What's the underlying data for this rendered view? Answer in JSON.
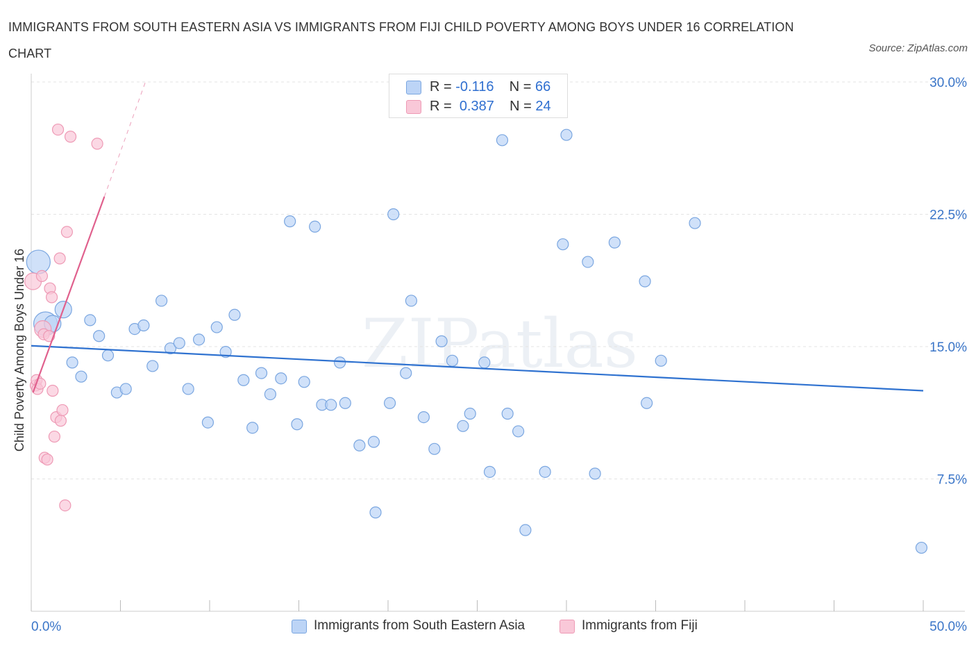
{
  "header": {
    "title": "IMMIGRANTS FROM SOUTH EASTERN ASIA VS IMMIGRANTS FROM FIJI CHILD POVERTY AMONG BOYS UNDER 16 CORRELATION CHART",
    "source": "Source: ZipAtlas.com"
  },
  "watermark": "ZIPatlas",
  "colors": {
    "blue_fill": "#bcd4f6",
    "blue_stroke": "#7aa6e0",
    "blue_line": "#2f72d0",
    "pink_fill": "#f9c8d8",
    "pink_stroke": "#ee9ab5",
    "pink_line": "#e0608d",
    "axis_text": "#3a75c8",
    "grid": "#e3e3e3"
  },
  "legend_top": {
    "blue": {
      "r_label": "R =",
      "r_value": "-0.116",
      "n_label": "N =",
      "n_value": "66"
    },
    "pink": {
      "r_label": "R =",
      "r_value": "0.387",
      "n_label": "N =",
      "n_value": "24"
    }
  },
  "chart_data": {
    "type": "scatter",
    "title": "IMMIGRANTS FROM SOUTH EASTERN ASIA VS IMMIGRANTS FROM FIJI CHILD POVERTY AMONG BOYS UNDER 16 CORRELATION CHART",
    "xlabel": "",
    "ylabel": "Child Poverty Among Boys Under 16",
    "xlim": [
      0,
      50
    ],
    "ylim": [
      0,
      30
    ],
    "x_tick_labels": [
      "0.0%",
      "50.0%"
    ],
    "y_tick_labels": [
      "7.5%",
      "15.0%",
      "22.5%",
      "30.0%"
    ],
    "y_ticks": [
      7.5,
      15.0,
      22.5,
      30.0
    ],
    "grid": true,
    "legend_position": "bottom",
    "series": [
      {
        "name": "Immigrants from South Eastern Asia",
        "color": "#bcd4f6",
        "R": -0.116,
        "N": 66,
        "trend": {
          "x": [
            0,
            50
          ],
          "y": [
            15.05,
            12.5
          ]
        },
        "points": [
          {
            "x": 0.4,
            "y": 19.8,
            "big": 2
          },
          {
            "x": 0.8,
            "y": 16.3,
            "big": 2
          },
          {
            "x": 1.2,
            "y": 16.3,
            "big": 1
          },
          {
            "x": 1.8,
            "y": 17.1,
            "big": 1
          },
          {
            "x": 2.3,
            "y": 14.1
          },
          {
            "x": 2.8,
            "y": 13.3
          },
          {
            "x": 3.3,
            "y": 16.5
          },
          {
            "x": 3.8,
            "y": 15.6
          },
          {
            "x": 4.3,
            "y": 14.5
          },
          {
            "x": 4.8,
            "y": 12.4
          },
          {
            "x": 5.3,
            "y": 12.6
          },
          {
            "x": 5.8,
            "y": 16.0
          },
          {
            "x": 6.3,
            "y": 16.2
          },
          {
            "x": 6.8,
            "y": 13.9
          },
          {
            "x": 7.3,
            "y": 17.6
          },
          {
            "x": 7.8,
            "y": 14.9
          },
          {
            "x": 8.3,
            "y": 15.2
          },
          {
            "x": 8.8,
            "y": 12.6
          },
          {
            "x": 9.4,
            "y": 15.4
          },
          {
            "x": 9.9,
            "y": 10.7
          },
          {
            "x": 10.4,
            "y": 16.1
          },
          {
            "x": 10.9,
            "y": 14.7
          },
          {
            "x": 11.4,
            "y": 16.8
          },
          {
            "x": 11.9,
            "y": 13.1
          },
          {
            "x": 12.4,
            "y": 10.4
          },
          {
            "x": 12.9,
            "y": 13.5
          },
          {
            "x": 13.4,
            "y": 12.3
          },
          {
            "x": 14.0,
            "y": 13.2
          },
          {
            "x": 14.5,
            "y": 22.1
          },
          {
            "x": 14.9,
            "y": 10.6
          },
          {
            "x": 15.3,
            "y": 13.0
          },
          {
            "x": 15.9,
            "y": 21.8
          },
          {
            "x": 16.3,
            "y": 11.7
          },
          {
            "x": 16.8,
            "y": 11.7
          },
          {
            "x": 17.3,
            "y": 14.1
          },
          {
            "x": 17.6,
            "y": 11.8
          },
          {
            "x": 18.4,
            "y": 9.4
          },
          {
            "x": 19.2,
            "y": 9.6
          },
          {
            "x": 19.3,
            "y": 5.6
          },
          {
            "x": 20.1,
            "y": 11.8
          },
          {
            "x": 20.3,
            "y": 22.5
          },
          {
            "x": 21.0,
            "y": 13.5
          },
          {
            "x": 21.3,
            "y": 17.6
          },
          {
            "x": 22.0,
            "y": 11.0
          },
          {
            "x": 22.6,
            "y": 9.2
          },
          {
            "x": 23.0,
            "y": 15.3
          },
          {
            "x": 23.6,
            "y": 14.2
          },
          {
            "x": 24.2,
            "y": 10.5
          },
          {
            "x": 24.6,
            "y": 11.2
          },
          {
            "x": 25.4,
            "y": 14.1
          },
          {
            "x": 25.7,
            "y": 7.9
          },
          {
            "x": 26.4,
            "y": 26.7
          },
          {
            "x": 26.7,
            "y": 11.2
          },
          {
            "x": 27.3,
            "y": 10.2
          },
          {
            "x": 27.7,
            "y": 4.6
          },
          {
            "x": 28.8,
            "y": 7.9
          },
          {
            "x": 29.8,
            "y": 20.8
          },
          {
            "x": 30.0,
            "y": 27.0
          },
          {
            "x": 31.2,
            "y": 19.8
          },
          {
            "x": 31.6,
            "y": 7.8
          },
          {
            "x": 32.7,
            "y": 20.9
          },
          {
            "x": 34.4,
            "y": 18.7
          },
          {
            "x": 34.5,
            "y": 11.8
          },
          {
            "x": 35.3,
            "y": 14.2
          },
          {
            "x": 37.2,
            "y": 22.0
          },
          {
            "x": 49.9,
            "y": 3.6
          }
        ]
      },
      {
        "name": "Immigrants from Fiji",
        "color": "#f9c8d8",
        "R": 0.387,
        "N": 24,
        "trend": {
          "x": [
            0.1,
            4.1
          ],
          "y": [
            12.4,
            23.5
          ]
        },
        "trend_ext": {
          "x": [
            4.1,
            6.4
          ],
          "y": [
            23.5,
            30.0
          ]
        },
        "points": [
          {
            "x": 0.1,
            "y": 18.7,
            "big": 1
          },
          {
            "x": 0.25,
            "y": 12.8
          },
          {
            "x": 0.3,
            "y": 13.1
          },
          {
            "x": 0.35,
            "y": 12.6
          },
          {
            "x": 0.5,
            "y": 12.9
          },
          {
            "x": 0.6,
            "y": 19.0
          },
          {
            "x": 0.65,
            "y": 16.0,
            "big": 1
          },
          {
            "x": 0.7,
            "y": 15.7
          },
          {
            "x": 0.75,
            "y": 8.7
          },
          {
            "x": 0.9,
            "y": 8.6
          },
          {
            "x": 1.0,
            "y": 15.6
          },
          {
            "x": 1.05,
            "y": 18.3
          },
          {
            "x": 1.15,
            "y": 17.8
          },
          {
            "x": 1.2,
            "y": 12.5
          },
          {
            "x": 1.3,
            "y": 9.9
          },
          {
            "x": 1.4,
            "y": 11.0
          },
          {
            "x": 1.5,
            "y": 27.3
          },
          {
            "x": 1.6,
            "y": 20.0
          },
          {
            "x": 1.65,
            "y": 10.8
          },
          {
            "x": 1.75,
            "y": 11.4
          },
          {
            "x": 1.9,
            "y": 6.0
          },
          {
            "x": 2.0,
            "y": 21.5
          },
          {
            "x": 2.2,
            "y": 26.9
          },
          {
            "x": 3.7,
            "y": 26.5
          }
        ]
      }
    ]
  },
  "legend_bottom": {
    "blue_label": "Immigrants from South Eastern Asia",
    "pink_label": "Immigrants from Fiji"
  }
}
